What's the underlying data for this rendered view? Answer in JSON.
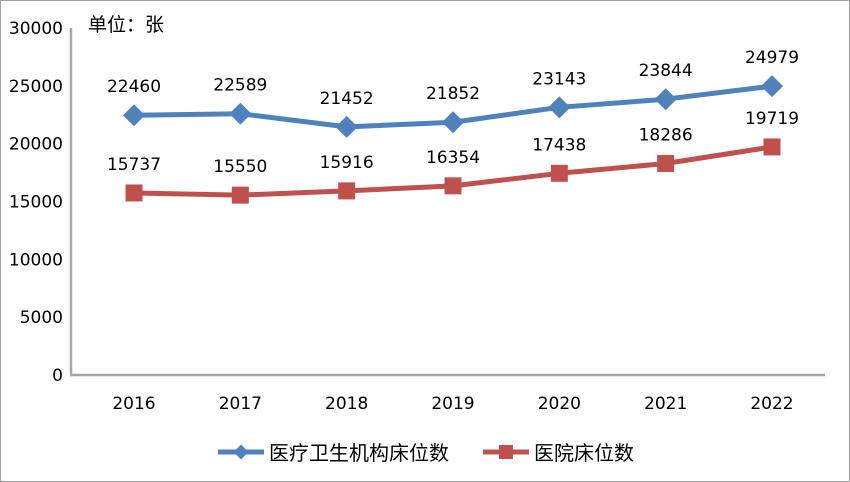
{
  "chart_data": {
    "type": "line",
    "title": "",
    "unit_label": "单位：张",
    "categories": [
      "2016",
      "2017",
      "2018",
      "2019",
      "2020",
      "2021",
      "2022"
    ],
    "series": [
      {
        "name": "医疗卫生机构床位数",
        "values": [
          22460,
          22589,
          21452,
          21852,
          23143,
          23844,
          24979
        ],
        "color": "#4F81BD",
        "marker": "diamond"
      },
      {
        "name": "医院床位数",
        "values": [
          15737,
          15550,
          15916,
          16354,
          17438,
          18286,
          19719
        ],
        "color": "#C0504D",
        "marker": "square"
      }
    ],
    "ylim": [
      0,
      30000
    ],
    "yticks": [
      0,
      5000,
      10000,
      15000,
      20000,
      25000,
      30000
    ],
    "grid": false,
    "data_labels": true,
    "legend_position": "bottom",
    "axis_color": "#A6A6A6",
    "label_color": "#000000"
  }
}
